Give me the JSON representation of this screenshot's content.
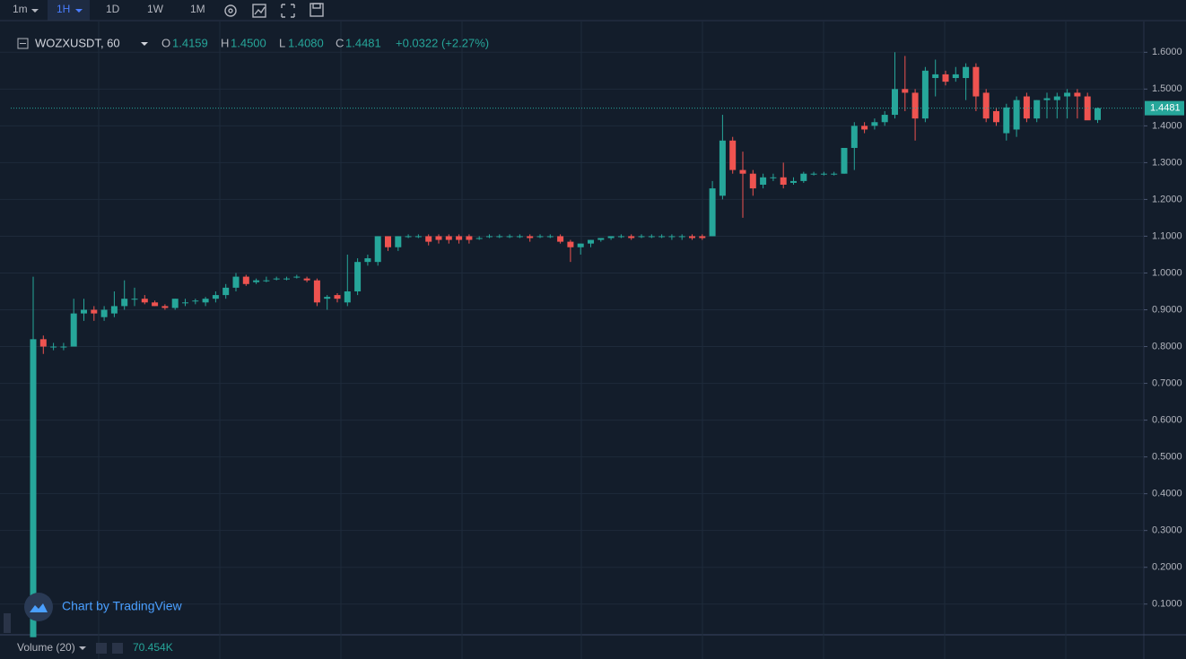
{
  "toolbar": {
    "intervals": [
      "1m",
      "1H",
      "1D",
      "1W",
      "1M"
    ]
  },
  "header": {
    "symbol": "WOZXUSDT, 60",
    "o_label": "O",
    "o": "1.4159",
    "h_label": "H",
    "h": "1.4500",
    "l_label": "L",
    "l": "1.4080",
    "c_label": "C",
    "c": "1.4481",
    "change": "+0.0322 (+2.27%)"
  },
  "volume": {
    "title": "Volume (20)",
    "value": "70.454K"
  },
  "watermark": "Chart by TradingView",
  "chart_data": {
    "type": "candlestick",
    "up_color": "#26a69a",
    "down_color": "#ef5350",
    "ylim": [
      0.0165,
      1.6836
    ],
    "yticks": [
      {
        "value": 0.1,
        "label": "0.1000"
      },
      {
        "value": 0.2,
        "label": "0.2000"
      },
      {
        "value": 0.3,
        "label": "0.3000"
      },
      {
        "value": 0.4,
        "label": "0.4000"
      },
      {
        "value": 0.5,
        "label": "0.5000"
      },
      {
        "value": 0.6,
        "label": "0.6000"
      },
      {
        "value": 0.7,
        "label": "0.7000"
      },
      {
        "value": 0.8,
        "label": "0.8000"
      },
      {
        "value": 0.9,
        "label": "0.9000"
      },
      {
        "value": 1.0,
        "label": "1.0000"
      },
      {
        "value": 1.1,
        "label": "1.1000"
      },
      {
        "value": 1.2,
        "label": "1.2000"
      },
      {
        "value": 1.3,
        "label": "1.3000"
      },
      {
        "value": 1.4,
        "label": "1.4000"
      },
      {
        "value": 1.5,
        "label": "1.5000"
      },
      {
        "value": 1.6,
        "label": "1.6000"
      }
    ],
    "grid": true,
    "last_price": {
      "value": 1.4481,
      "label": "1.4481"
    },
    "open": [
      0.01,
      0.82,
      0.8,
      0.8,
      0.8,
      0.89,
      0.9,
      0.88,
      0.89,
      0.91,
      0.93,
      0.93,
      0.92,
      0.91,
      0.905,
      0.92,
      0.925,
      0.92,
      0.93,
      0.94,
      0.96,
      0.99,
      0.975,
      0.98,
      0.985,
      0.985,
      0.99,
      0.985,
      0.98,
      0.93,
      0.94,
      0.92,
      0.95,
      1.03,
      1.03,
      1.1,
      1.07,
      1.1,
      1.1,
      1.1,
      1.1,
      1.1,
      1.1,
      1.1,
      1.095,
      1.1,
      1.1,
      1.1,
      1.1,
      1.1,
      1.1,
      1.1,
      1.1,
      1.085,
      1.07,
      1.08,
      1.09,
      1.095,
      1.1,
      1.1,
      1.1,
      1.1,
      1.1,
      1.1,
      1.1,
      1.1,
      1.1,
      1.1,
      1.21,
      1.36,
      1.28,
      1.27,
      1.24,
      1.26,
      1.26,
      1.245,
      1.25,
      1.27,
      1.27,
      1.27,
      1.27,
      1.34,
      1.4,
      1.4,
      1.41,
      1.43,
      1.5,
      1.49,
      1.42,
      1.53,
      1.54,
      1.53,
      1.53,
      1.56,
      1.49,
      1.44,
      1.38,
      1.39,
      1.48,
      1.42,
      1.47,
      1.47,
      1.48,
      1.49,
      1.48,
      1.4159
    ],
    "high": [
      0.99,
      0.83,
      0.81,
      0.81,
      0.93,
      0.93,
      0.91,
      0.91,
      0.95,
      0.98,
      0.96,
      0.94,
      0.925,
      0.915,
      0.93,
      0.93,
      0.93,
      0.935,
      0.95,
      0.97,
      1.0,
      0.995,
      0.985,
      0.99,
      0.99,
      0.99,
      0.995,
      0.99,
      0.985,
      0.94,
      0.945,
      1.05,
      1.04,
      1.05,
      1.1,
      1.1,
      1.1,
      1.105,
      1.105,
      1.105,
      1.105,
      1.105,
      1.105,
      1.105,
      1.1,
      1.105,
      1.105,
      1.105,
      1.105,
      1.105,
      1.105,
      1.105,
      1.105,
      1.09,
      1.08,
      1.09,
      1.095,
      1.1,
      1.105,
      1.105,
      1.105,
      1.105,
      1.105,
      1.105,
      1.105,
      1.105,
      1.105,
      1.25,
      1.43,
      1.37,
      1.33,
      1.28,
      1.27,
      1.27,
      1.3,
      1.26,
      1.275,
      1.275,
      1.275,
      1.275,
      1.34,
      1.41,
      1.41,
      1.42,
      1.44,
      1.6,
      1.59,
      1.5,
      1.56,
      1.58,
      1.55,
      1.56,
      1.57,
      1.57,
      1.5,
      1.45,
      1.46,
      1.48,
      1.49,
      1.47,
      1.49,
      1.49,
      1.5,
      1.5,
      1.49,
      1.45
    ],
    "low": [
      0.01,
      0.78,
      0.79,
      0.79,
      0.8,
      0.87,
      0.87,
      0.87,
      0.88,
      0.9,
      0.91,
      0.915,
      0.91,
      0.9,
      0.9,
      0.91,
      0.915,
      0.91,
      0.92,
      0.93,
      0.95,
      0.965,
      0.97,
      0.975,
      0.98,
      0.98,
      0.985,
      0.975,
      0.91,
      0.9,
      0.92,
      0.91,
      0.94,
      1.02,
      1.02,
      1.06,
      1.06,
      1.095,
      1.095,
      1.075,
      1.08,
      1.08,
      1.08,
      1.08,
      1.09,
      1.095,
      1.095,
      1.095,
      1.095,
      1.085,
      1.095,
      1.095,
      1.08,
      1.03,
      1.05,
      1.07,
      1.085,
      1.09,
      1.095,
      1.09,
      1.095,
      1.095,
      1.095,
      1.09,
      1.09,
      1.09,
      1.09,
      1.1,
      1.2,
      1.27,
      1.15,
      1.21,
      1.23,
      1.25,
      1.23,
      1.24,
      1.245,
      1.265,
      1.265,
      1.265,
      1.27,
      1.28,
      1.38,
      1.39,
      1.4,
      1.42,
      1.44,
      1.36,
      1.41,
      1.48,
      1.51,
      1.52,
      1.47,
      1.44,
      1.41,
      1.4,
      1.36,
      1.37,
      1.41,
      1.41,
      1.42,
      1.42,
      1.42,
      1.42,
      1.42,
      1.408
    ],
    "close": [
      0.82,
      0.8,
      0.8,
      0.8,
      0.89,
      0.9,
      0.89,
      0.9,
      0.91,
      0.93,
      0.93,
      0.92,
      0.91,
      0.905,
      0.93,
      0.92,
      0.925,
      0.93,
      0.94,
      0.96,
      0.99,
      0.97,
      0.98,
      0.98,
      0.985,
      0.985,
      0.99,
      0.98,
      0.92,
      0.935,
      0.93,
      0.95,
      1.03,
      1.04,
      1.1,
      1.07,
      1.1,
      1.1,
      1.1,
      1.085,
      1.09,
      1.09,
      1.09,
      1.09,
      1.095,
      1.1,
      1.1,
      1.1,
      1.1,
      1.095,
      1.1,
      1.1,
      1.085,
      1.07,
      1.08,
      1.09,
      1.095,
      1.1,
      1.1,
      1.095,
      1.1,
      1.1,
      1.1,
      1.1,
      1.1,
      1.095,
      1.095,
      1.23,
      1.36,
      1.28,
      1.27,
      1.23,
      1.26,
      1.26,
      1.24,
      1.25,
      1.27,
      1.27,
      1.27,
      1.27,
      1.34,
      1.4,
      1.39,
      1.41,
      1.43,
      1.5,
      1.49,
      1.42,
      1.55,
      1.54,
      1.52,
      1.54,
      1.56,
      1.48,
      1.42,
      1.41,
      1.45,
      1.47,
      1.42,
      1.47,
      1.475,
      1.48,
      1.49,
      1.48,
      1.415,
      1.4481
    ]
  }
}
